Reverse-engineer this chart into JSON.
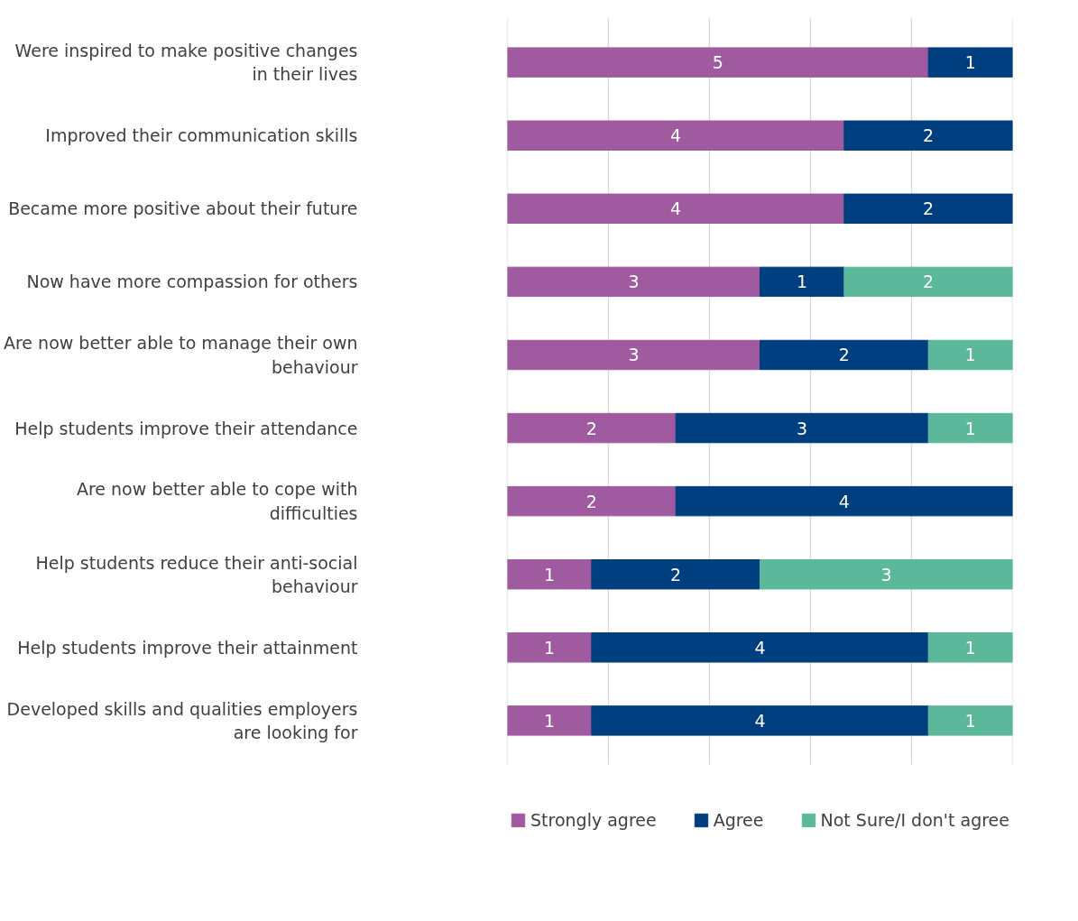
{
  "chart_data": {
    "type": "bar",
    "orientation": "horizontal",
    "stacked": true,
    "categories": [
      "Were inspired to make positive changes in their lives",
      "Improved their communication skills",
      "Became more positive about their future",
      "Now have more compassion for others",
      "Are now better able to manage their own behaviour",
      "Help students improve their attendance",
      "Are now better able to cope with difficulties",
      "Help students reduce their anti-social behaviour",
      "Help students improve their attainment",
      "Developed skills and qualities employers are looking for"
    ],
    "series": [
      {
        "name": "Strongly agree",
        "color": "#a05a9f",
        "values": [
          5,
          4,
          4,
          3,
          3,
          2,
          2,
          1,
          1,
          1
        ]
      },
      {
        "name": "Agree",
        "color": "#003f7f",
        "values": [
          1,
          2,
          2,
          1,
          2,
          3,
          4,
          2,
          4,
          4
        ]
      },
      {
        "name": "Not Sure/I don't agree",
        "color": "#5bb89a",
        "values": [
          null,
          null,
          null,
          2,
          1,
          1,
          null,
          3,
          1,
          1
        ]
      }
    ],
    "xlim": [
      0,
      6
    ],
    "xticks": [
      {
        "value": 0,
        "label": null
      },
      {
        "value": 1.2,
        "label": null
      },
      {
        "value": 2.4,
        "label": null
      },
      {
        "value": 3.6,
        "label": null
      },
      {
        "value": 4.8,
        "label": null
      },
      {
        "value": 6,
        "label": null
      }
    ],
    "tick_labels": "y",
    "grid": "x",
    "legend": "bottom",
    "data_labels": true
  }
}
